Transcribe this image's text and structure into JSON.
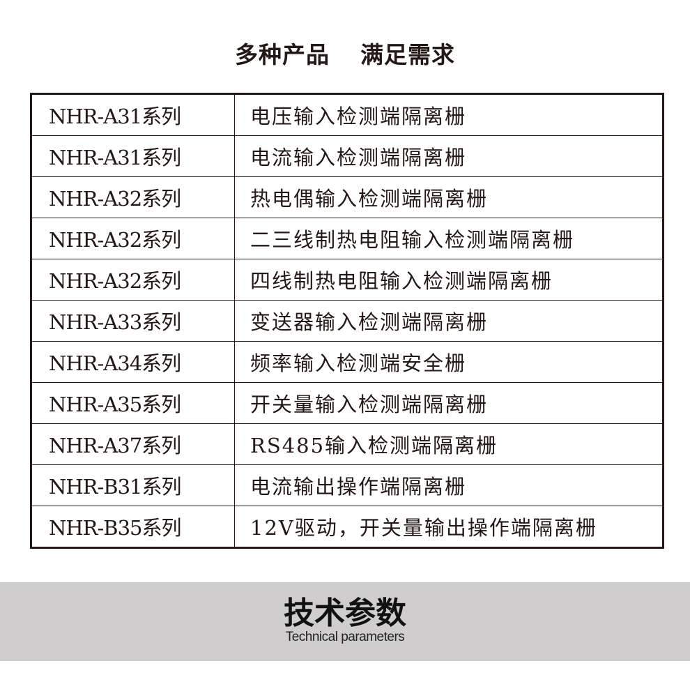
{
  "header": {
    "title_part1": "多种产品",
    "title_part2": "满足需求"
  },
  "table": {
    "rows": [
      {
        "series": "NHR-A31系列",
        "description": "电压输入检测端隔离栅"
      },
      {
        "series": "NHR-A31系列",
        "description": "电流输入检测端隔离栅"
      },
      {
        "series": "NHR-A32系列",
        "description": "热电偶输入检测端隔离栅"
      },
      {
        "series": "NHR-A32系列",
        "description": "二三线制热电阻输入检测端隔离栅"
      },
      {
        "series": "NHR-A32系列",
        "description": "四线制热电阻输入检测端隔离栅"
      },
      {
        "series": "NHR-A33系列",
        "description": "变送器输入检测端隔离栅"
      },
      {
        "series": "NHR-A34系列",
        "description": "频率输入检测端安全栅"
      },
      {
        "series": "NHR-A35系列",
        "description": "开关量输入检测端隔离栅"
      },
      {
        "series": "NHR-A37系列",
        "description": "RS485输入检测端隔离栅"
      },
      {
        "series": "NHR-B31系列",
        "description": "电流输出操作端隔离栅"
      },
      {
        "series": "NHR-B35系列",
        "description": "12V驱动，开关量输出操作端隔离栅"
      }
    ]
  },
  "section": {
    "title": "技术参数",
    "subtitle": "Technical parameters",
    "background": "#cfcdce"
  }
}
